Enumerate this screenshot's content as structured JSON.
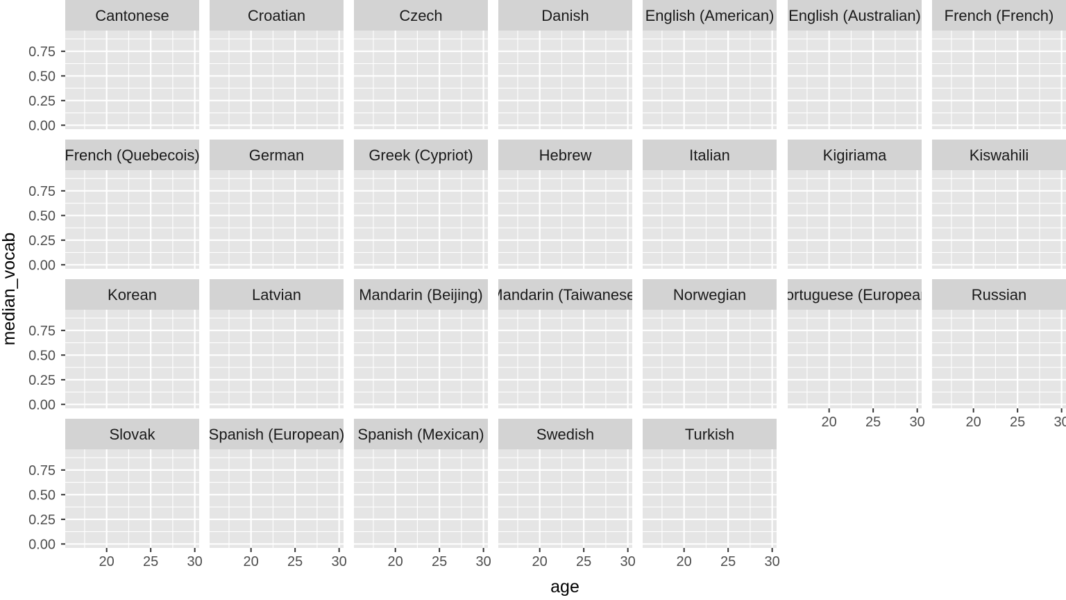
{
  "chart_data": {
    "type": "scatter",
    "facets": [
      "Cantonese",
      "Croatian",
      "Czech",
      "Danish",
      "English (American)",
      "English (Australian)",
      "French (French)",
      "French (Quebecois)",
      "German",
      "Greek (Cypriot)",
      "Hebrew",
      "Italian",
      "Kigiriama",
      "Kiswahili",
      "Korean",
      "Latvian",
      "Mandarin (Beijing)",
      "Mandarin (Taiwanese)",
      "Norwegian",
      "Portuguese (European)",
      "Russian",
      "Slovak",
      "Spanish (European)",
      "Spanish (Mexican)",
      "Swedish",
      "Turkish"
    ],
    "facet_columns": 7,
    "xlabel": "age",
    "ylabel": "median_vocab",
    "x_ticks": [
      20,
      25,
      30
    ],
    "x_tick_labels": [
      "20",
      "25",
      "30"
    ],
    "y_ticks": [
      0,
      0.25,
      0.5,
      0.75
    ],
    "y_tick_labels": [
      "0.00",
      "0.25",
      "0.50",
      "0.75"
    ],
    "xlim": [
      15.3,
      30.5
    ],
    "ylim": [
      -0.04,
      0.96
    ],
    "series": [],
    "grid": true,
    "colors": {
      "panel_background": "#e5e5e5",
      "strip_background": "#d3d3d3",
      "grid_line": "#ffffff",
      "tick_mark": "#333333",
      "tick_text": "#4d4d4d"
    }
  }
}
